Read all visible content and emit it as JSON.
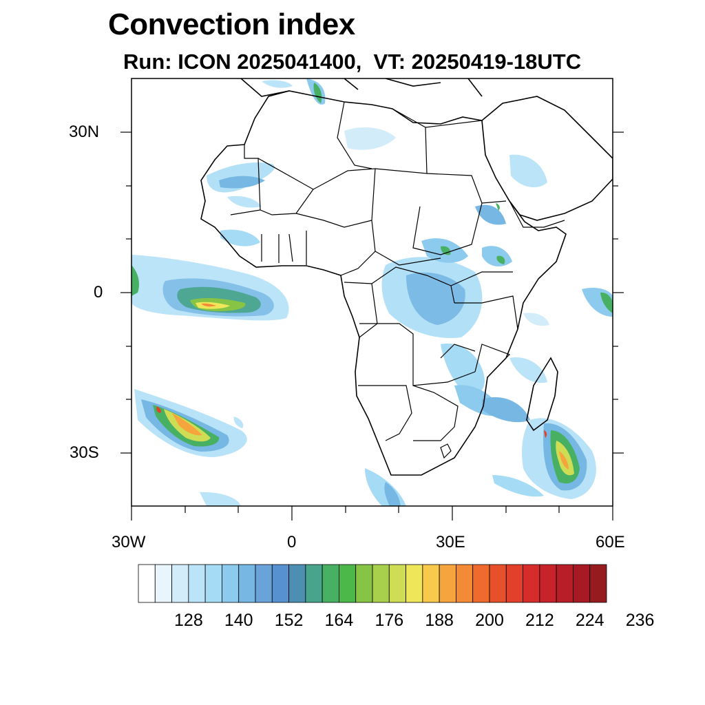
{
  "title": "Convection index",
  "subtitle": "Run: ICON 2025041400,  VT: 20250419-18UTC",
  "map": {
    "lon_range": [
      -30,
      60
    ],
    "lat_range": [
      -40,
      40
    ],
    "lat_ticks": [
      {
        "lat": 30,
        "label": "30N"
      },
      {
        "lat": 0,
        "label": "0"
      },
      {
        "lat": -30,
        "label": "30S"
      }
    ],
    "lon_ticks": [
      {
        "lon": -30,
        "label": "30W"
      },
      {
        "lon": 0,
        "label": "0"
      },
      {
        "lon": 30,
        "label": "30E"
      },
      {
        "lon": 60,
        "label": "60E"
      }
    ]
  },
  "colorbar": {
    "colors": [
      "#ffffff",
      "#e9f5fc",
      "#d2ecfa",
      "#bce4f8",
      "#a5dbf5",
      "#8ccaee",
      "#76b7e4",
      "#6aa2da",
      "#5891cf",
      "#4c8fb3",
      "#48a48a",
      "#47b062",
      "#4cb84a",
      "#87c446",
      "#a9d04c",
      "#cfdd55",
      "#f0e65a",
      "#f8c94c",
      "#f6a43e",
      "#f38a35",
      "#ee6a2d",
      "#e6512b",
      "#e2402b",
      "#d72c2c",
      "#c8232b",
      "#b81e28",
      "#a81a23",
      "#951b1f"
    ],
    "labels": [
      "128",
      "140",
      "152",
      "164",
      "176",
      "188",
      "200",
      "212",
      "224",
      "236"
    ]
  }
}
